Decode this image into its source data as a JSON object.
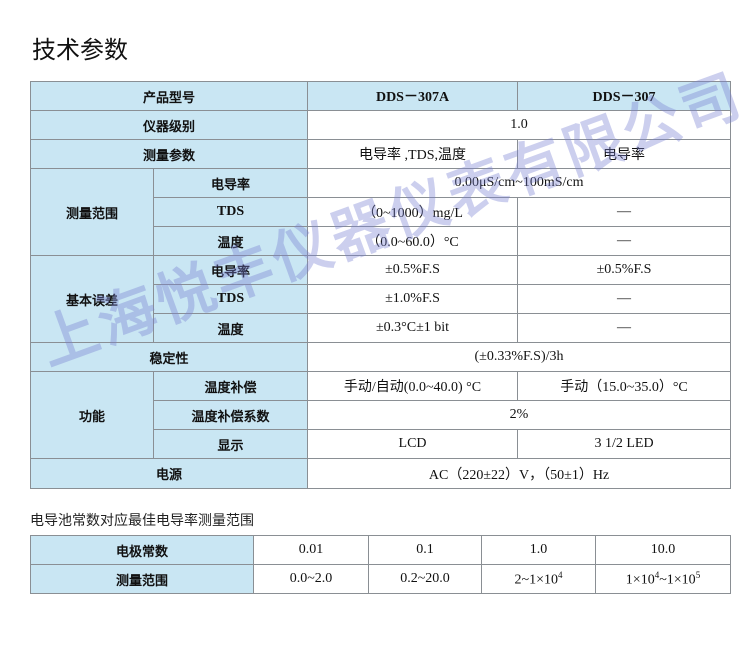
{
  "title": "技术参数",
  "spec_table": {
    "header": {
      "label": "产品型号",
      "model_a": "DDS－307A",
      "model_b": "DDS－307"
    },
    "grade": {
      "label": "仪器级别",
      "value": "1.0"
    },
    "params": {
      "label": "测量参数",
      "a": "电导率 ,TDS,温度",
      "b": "电导率"
    },
    "range": {
      "label": "测量范围",
      "conductivity": {
        "label": "电导率",
        "value": "0.00μS/cm~100mS/cm"
      },
      "tds": {
        "label": "TDS",
        "a": "（0~1000）mg/L",
        "b": "—"
      },
      "temp": {
        "label": "温度",
        "a": "（0.0~60.0）°C",
        "b": "—"
      }
    },
    "error": {
      "label": "基本误差",
      "conductivity": {
        "label": "电导率",
        "a": "±0.5%F.S",
        "b": "±0.5%F.S"
      },
      "tds": {
        "label": "TDS",
        "a": "±1.0%F.S",
        "b": "—"
      },
      "temp": {
        "label": "温度",
        "a": "±0.3°C±1 bit",
        "b": "—"
      }
    },
    "stability": {
      "label": "稳定性",
      "value": "(±0.33%F.S)/3h"
    },
    "function": {
      "label": "功能",
      "temp_comp": {
        "label": "温度补偿",
        "a": "手动/自动(0.0~40.0) °C",
        "b": "手动（15.0~35.0）°C"
      },
      "temp_coef": {
        "label": "温度补偿系数",
        "value": "2%"
      },
      "display": {
        "label": "显示",
        "a": "LCD",
        "b": "3 1/2 LED"
      }
    },
    "power": {
      "label": "电源",
      "value": "AC（220±22）V，（50±1）Hz"
    }
  },
  "cell_subtitle": "电导池常数对应最佳电导率测量范围",
  "cell_table": {
    "row1_label": "电极常数",
    "constants": [
      "0.01",
      "0.1",
      "1.0",
      "10.0"
    ],
    "row2_label": "测量范围",
    "ranges": [
      "0.0~2.0",
      "0.2~20.0"
    ],
    "range3": {
      "base": "2~1×10",
      "exp": "4"
    },
    "range4": {
      "base1": "1×10",
      "exp1": "4",
      "mid": "~1×10",
      "exp2": "5"
    }
  },
  "watermark": "上海悦丰仪器仪表有限公司",
  "colors": {
    "header_fill": "#c9e6f3",
    "border": "#8a8f94",
    "watermark": "#7882d2"
  }
}
